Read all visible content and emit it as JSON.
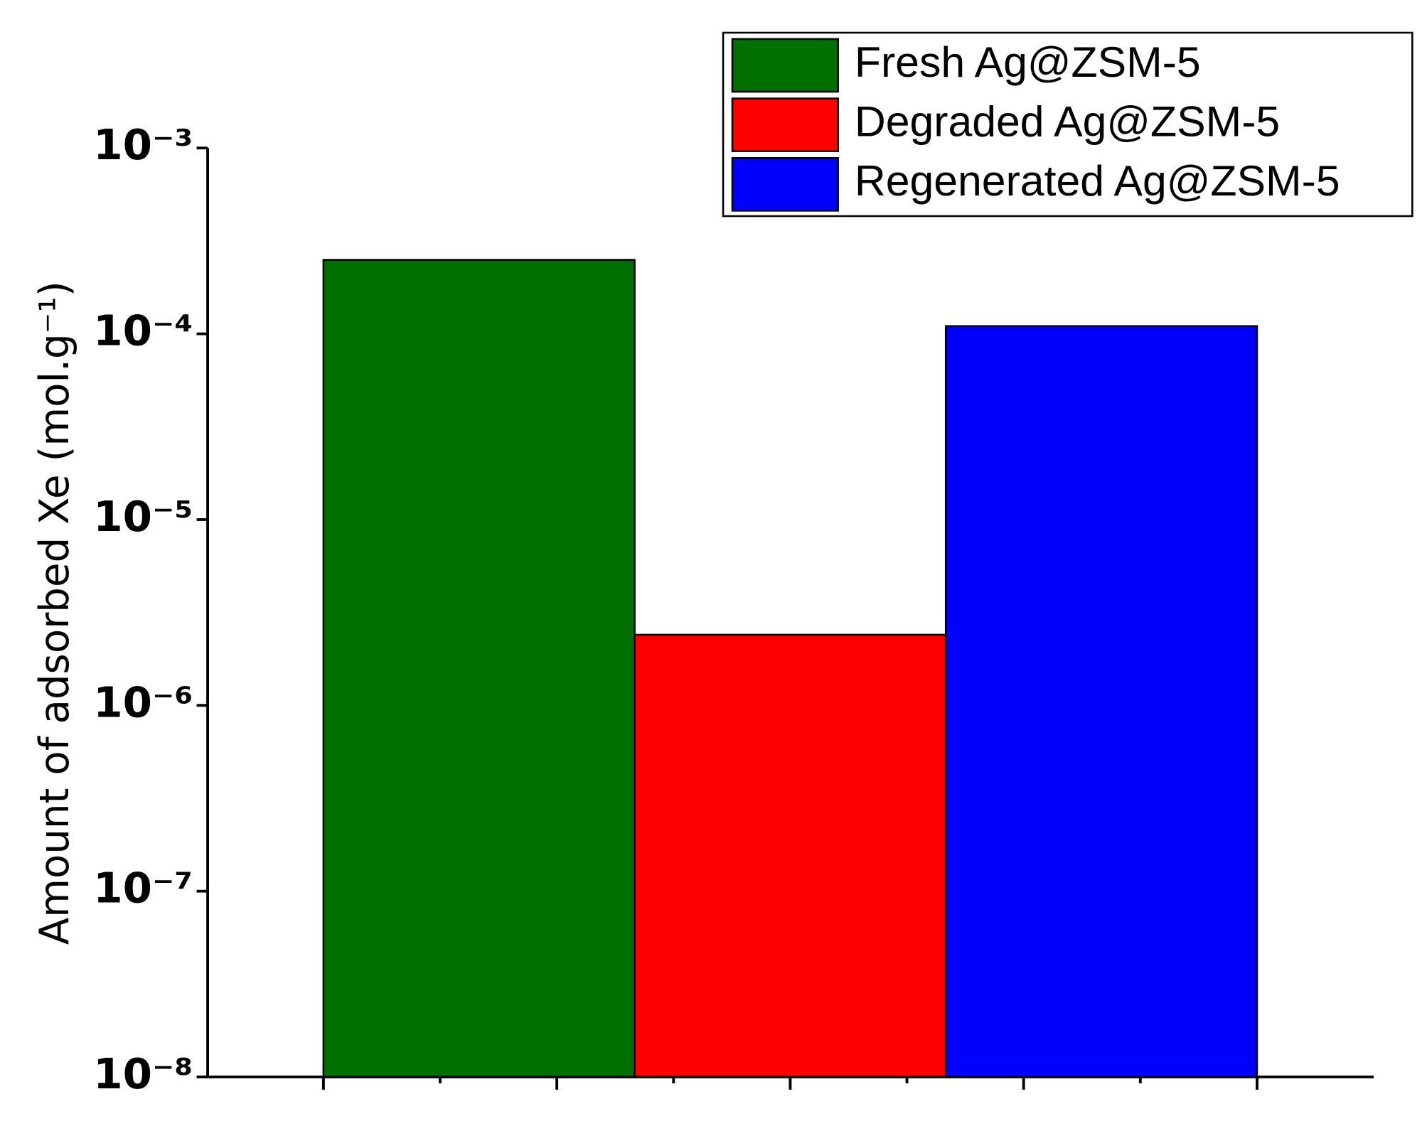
{
  "chart_data": {
    "type": "bar",
    "y_label": "Amount of adsorbed Xe (mol.g⁻¹)",
    "log_scale": true,
    "legend": "top-right",
    "categories": [
      null,
      null,
      null
    ],
    "series": [
      {
        "name": "Fresh Ag@ZSM-5",
        "color": "#007000",
        "values": [
          0.00025,
          null,
          null
        ]
      },
      {
        "name": "Degraded Ag@ZSM-5",
        "color": "#ff0000",
        "values": [
          null,
          2.4e-06,
          null
        ]
      },
      {
        "name": "Regenerated Ag@ZSM-5",
        "color": "#0000ff",
        "values": [
          null,
          null,
          0.00011
        ]
      }
    ],
    "ylim": [
      1e-08,
      0.001
    ],
    "yticks": [
      {
        "value": 1e-08,
        "label": "10⁻⁸"
      },
      {
        "value": 1e-07,
        "label": "10⁻⁷"
      },
      {
        "value": 1e-06,
        "label": "10⁻⁶"
      },
      {
        "value": 1e-05,
        "label": "10⁻⁵"
      },
      {
        "value": 0.0001,
        "label": "10⁻⁴"
      },
      {
        "value": 0.001,
        "label": "10⁻³"
      }
    ]
  }
}
